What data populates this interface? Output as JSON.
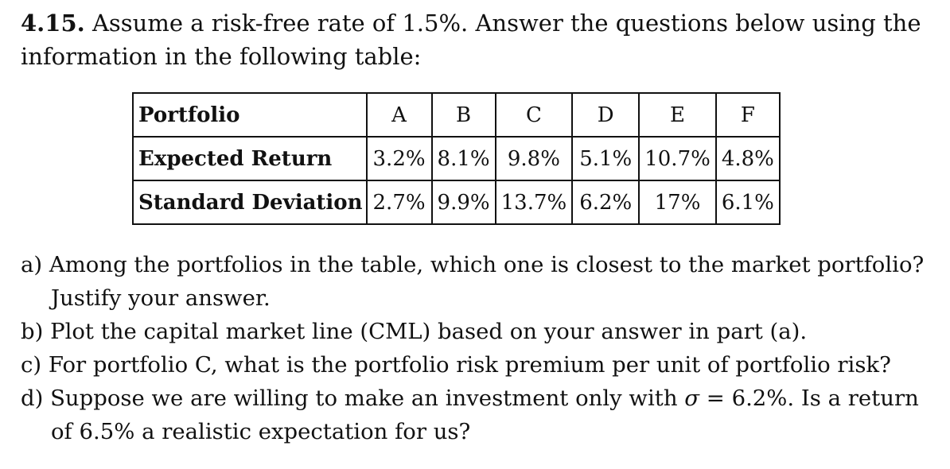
{
  "problem": {
    "number": "4.15.",
    "statement_line1": "Assume a risk-free rate of 1.5%. Answer the questions below using the",
    "statement_line2": "information in the following table:"
  },
  "table": {
    "headers": [
      "Portfolio",
      "A",
      "B",
      "C",
      "D",
      "E",
      "F"
    ],
    "rows": [
      {
        "label": "Expected Return",
        "values": [
          "3.2%",
          "8.1%",
          "9.8%",
          "5.1%",
          "10.7%",
          "4.8%"
        ]
      },
      {
        "label": "Standard Deviation",
        "values": [
          "2.7%",
          "9.9%",
          "13.7%",
          "6.2%",
          "17%",
          "6.1%"
        ]
      }
    ]
  },
  "questions": {
    "a": "a) Among the portfolios in the table, which one is closest to the market portfolio? Justify your answer.",
    "b": "b) Plot the capital market line (CML) based on your answer in part (a).",
    "c": "c) For portfolio C, what is the portfolio risk premium per unit of portfolio risk?",
    "d_before_sigma": "d) Suppose we are willing to make an investment only with ",
    "d_sigma": "σ",
    "d_after_sigma": " = 6.2%. Is a return of 6.5% a realistic expectation for us?"
  }
}
